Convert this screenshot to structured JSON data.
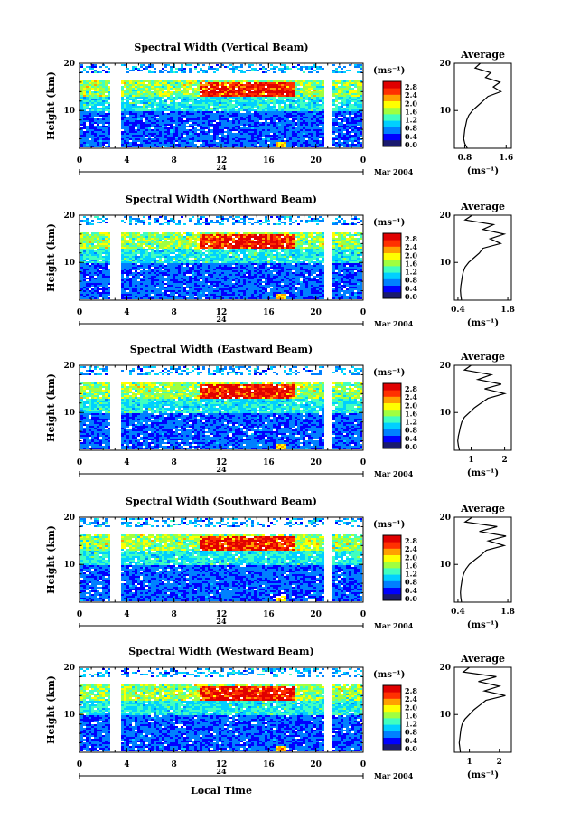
{
  "figure": {
    "date_label": "Mar 2004",
    "day_label": "24",
    "xlabel": "Local Time",
    "ylabel": "Height (km)",
    "avg_title": "Average",
    "unit_label": "(ms⁻¹)",
    "avg_unit_label": "(ms⁻¹)"
  },
  "colorbar": {
    "ticks": [
      "2.8",
      "2.4",
      "2.0",
      "1.6",
      "1.2",
      "0.8",
      "0.4",
      "0.0"
    ],
    "colors": [
      "#1a1a6e",
      "#0000ff",
      "#0080ff",
      "#00d0ff",
      "#40ffc0",
      "#a0ff40",
      "#ffff00",
      "#ffa000",
      "#ff3000",
      "#e00000"
    ]
  },
  "chart_data": [
    {
      "type": "heatmap",
      "title": "Spectral Width (Vertical Beam)",
      "xlabel": "Local Time",
      "ylabel": "Height (km)",
      "x_ticks": [
        "0",
        "4",
        "8",
        "12",
        "16",
        "20",
        "0"
      ],
      "y_ticks": [
        "20",
        "10"
      ],
      "xlim": [
        0,
        24
      ],
      "ylim": [
        2,
        20
      ],
      "gaps_hours": [
        [
          2.5,
          3.3
        ],
        [
          20.6,
          21.2
        ]
      ],
      "colorbar": {
        "label": "(ms⁻¹)",
        "range": [
          0.0,
          2.8
        ]
      },
      "average_profile": {
        "title": "Average",
        "xlabel": "(ms⁻¹)",
        "x_ticks": [
          "0.8",
          "1.6"
        ],
        "xlim": [
          0.6,
          1.7
        ],
        "y_ticks": [
          "20",
          "10"
        ],
        "ylim": [
          2,
          20
        ],
        "height_km": [
          2,
          3,
          4,
          5,
          6,
          7,
          8,
          9,
          10,
          11,
          12,
          13,
          14,
          15,
          16,
          17,
          18,
          19,
          20
        ],
        "width": [
          0.85,
          0.8,
          0.78,
          0.79,
          0.8,
          0.82,
          0.84,
          0.88,
          0.95,
          1.05,
          1.15,
          1.25,
          1.5,
          1.35,
          1.48,
          1.2,
          1.3,
          1.0,
          1.1
        ]
      }
    },
    {
      "type": "heatmap",
      "title": "Spectral Width (Northward Beam)",
      "xlabel": "Local Time",
      "ylabel": "Height (km)",
      "x_ticks": [
        "0",
        "4",
        "8",
        "12",
        "16",
        "20",
        "0"
      ],
      "y_ticks": [
        "20",
        "10"
      ],
      "xlim": [
        0,
        24
      ],
      "ylim": [
        2,
        20
      ],
      "gaps_hours": [
        [
          2.5,
          3.3
        ],
        [
          20.6,
          21.2
        ]
      ],
      "colorbar": {
        "label": "(ms⁻¹)",
        "range": [
          0.0,
          2.8
        ]
      },
      "average_profile": {
        "title": "Average",
        "xlabel": "(ms⁻¹)",
        "x_ticks": [
          "0.4",
          "1.8"
        ],
        "xlim": [
          0.3,
          1.9
        ],
        "y_ticks": [
          "20",
          "10"
        ],
        "ylim": [
          2,
          20
        ],
        "height_km": [
          2,
          3,
          4,
          5,
          6,
          7,
          8,
          9,
          10,
          11,
          12,
          13,
          14,
          15,
          16,
          17,
          18,
          19,
          20
        ],
        "width": [
          0.5,
          0.48,
          0.47,
          0.48,
          0.5,
          0.52,
          0.55,
          0.6,
          0.7,
          0.85,
          1.0,
          1.1,
          1.6,
          1.3,
          1.7,
          1.1,
          1.4,
          0.6,
          0.8
        ]
      }
    },
    {
      "type": "heatmap",
      "title": "Spectral Width (Eastward Beam)",
      "xlabel": "Local Time",
      "ylabel": "Height (km)",
      "x_ticks": [
        "0",
        "4",
        "8",
        "12",
        "16",
        "20",
        "0"
      ],
      "y_ticks": [
        "20",
        "10"
      ],
      "xlim": [
        0,
        24
      ],
      "ylim": [
        2,
        20
      ],
      "gaps_hours": [
        [
          2.5,
          3.3
        ],
        [
          20.6,
          21.2
        ]
      ],
      "colorbar": {
        "label": "(ms⁻¹)",
        "range": [
          0.0,
          2.8
        ]
      },
      "average_profile": {
        "title": "Average",
        "xlabel": "(ms⁻¹)",
        "x_ticks": [
          "1",
          "2"
        ],
        "xlim": [
          0.5,
          2.2
        ],
        "y_ticks": [
          "20",
          "10"
        ],
        "ylim": [
          2,
          20
        ],
        "height_km": [
          2,
          3,
          4,
          5,
          6,
          7,
          8,
          9,
          10,
          11,
          12,
          13,
          14,
          15,
          16,
          17,
          18,
          19,
          20
        ],
        "width": [
          0.65,
          0.62,
          0.6,
          0.62,
          0.65,
          0.68,
          0.72,
          0.8,
          0.95,
          1.1,
          1.3,
          1.5,
          2.0,
          1.4,
          1.9,
          1.2,
          1.6,
          0.8,
          1.0
        ]
      }
    },
    {
      "type": "heatmap",
      "title": "Spectral Width (Southward Beam)",
      "xlabel": "Local Time",
      "ylabel": "Height (km)",
      "x_ticks": [
        "0",
        "4",
        "8",
        "12",
        "16",
        "20",
        "0"
      ],
      "y_ticks": [
        "20",
        "10"
      ],
      "xlim": [
        0,
        24
      ],
      "ylim": [
        2,
        20
      ],
      "gaps_hours": [
        [
          2.5,
          3.3
        ],
        [
          20.6,
          21.2
        ]
      ],
      "colorbar": {
        "label": "(ms⁻¹)",
        "range": [
          0.0,
          2.8
        ]
      },
      "average_profile": {
        "title": "Average",
        "xlabel": "(ms⁻¹)",
        "x_ticks": [
          "0.4",
          "1.8"
        ],
        "xlim": [
          0.3,
          1.9
        ],
        "y_ticks": [
          "20",
          "10"
        ],
        "ylim": [
          2,
          20
        ],
        "height_km": [
          2,
          3,
          4,
          5,
          6,
          7,
          8,
          9,
          10,
          11,
          12,
          13,
          14,
          15,
          16,
          17,
          18,
          19,
          20
        ],
        "width": [
          0.5,
          0.48,
          0.47,
          0.48,
          0.5,
          0.52,
          0.56,
          0.62,
          0.72,
          0.88,
          1.05,
          1.2,
          1.7,
          1.25,
          1.75,
          1.0,
          1.5,
          0.6,
          0.8
        ]
      }
    },
    {
      "type": "heatmap",
      "title": "Spectral Width (Westward Beam)",
      "xlabel": "Local Time",
      "ylabel": "Height (km)",
      "x_ticks": [
        "0",
        "4",
        "8",
        "12",
        "16",
        "20",
        "0"
      ],
      "y_ticks": [
        "20",
        "10"
      ],
      "xlim": [
        0,
        24
      ],
      "ylim": [
        2,
        20
      ],
      "gaps_hours": [
        [
          2.5,
          3.3
        ],
        [
          20.6,
          21.2
        ]
      ],
      "colorbar": {
        "label": "(ms⁻¹)",
        "range": [
          0.0,
          2.8
        ]
      },
      "average_profile": {
        "title": "Average",
        "xlabel": "(ms⁻¹)",
        "x_ticks": [
          "1",
          "2"
        ],
        "xlim": [
          0.5,
          2.4
        ],
        "y_ticks": [
          "20",
          "10"
        ],
        "ylim": [
          2,
          20
        ],
        "height_km": [
          2,
          3,
          4,
          5,
          6,
          7,
          8,
          9,
          10,
          11,
          12,
          13,
          14,
          15,
          16,
          17,
          18,
          19,
          20
        ],
        "width": [
          0.7,
          0.68,
          0.66,
          0.68,
          0.7,
          0.72,
          0.76,
          0.85,
          1.0,
          1.15,
          1.35,
          1.55,
          2.2,
          1.5,
          2.0,
          1.3,
          1.9,
          0.8,
          1.0
        ]
      }
    }
  ]
}
